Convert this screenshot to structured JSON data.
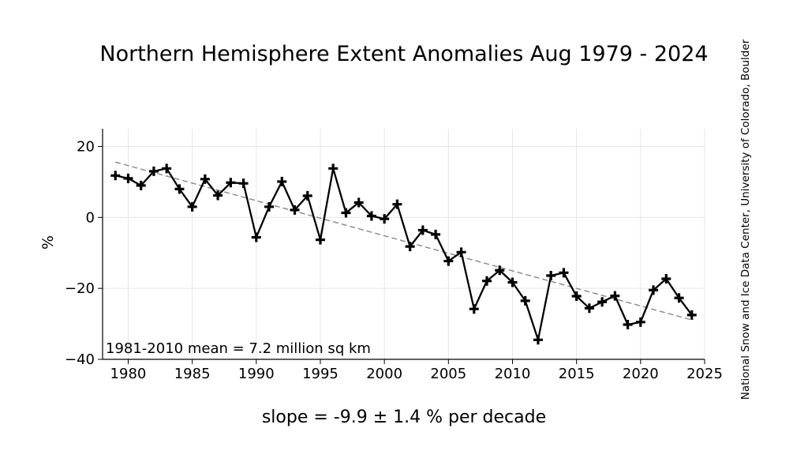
{
  "title": "Northern Hemisphere Extent Anomalies Aug 1979 - 2024",
  "credit": "National Snow and Ice Data Center, University of Colorado, Boulder",
  "slope_label": "slope = -9.9 ± 1.4 % per decade",
  "chart_data": {
    "type": "line",
    "title": "Northern Hemisphere Extent Anomalies Aug 1979 - 2024",
    "xlabel": "",
    "ylabel": "%",
    "xlim": [
      1978,
      2025
    ],
    "ylim": [
      -40,
      25
    ],
    "xticks": [
      1980,
      1985,
      1990,
      1995,
      2000,
      2005,
      2010,
      2015,
      2020,
      2025
    ],
    "yticks": [
      -40,
      -20,
      0,
      20
    ],
    "ytick_labels": [
      "−40",
      "−20",
      "0",
      "20"
    ],
    "grid": true,
    "annotation": "1981-2010 mean = 7.2 million sq km",
    "series": [
      {
        "style": "black line with plus markers",
        "x": [
          1979,
          1980,
          1981,
          1982,
          1983,
          1984,
          1985,
          1986,
          1987,
          1988,
          1989,
          1990,
          1991,
          1992,
          1993,
          1994,
          1995,
          1996,
          1997,
          1998,
          1999,
          2000,
          2001,
          2002,
          2003,
          2004,
          2005,
          2006,
          2007,
          2008,
          2009,
          2010,
          2011,
          2012,
          2013,
          2014,
          2015,
          2016,
          2017,
          2018,
          2019,
          2020,
          2021,
          2022,
          2023,
          2024
        ],
        "values": [
          11.8,
          11.0,
          9.0,
          13.0,
          13.8,
          8.0,
          3.0,
          10.8,
          6.2,
          9.8,
          9.6,
          -5.6,
          3.0,
          10.1,
          2.1,
          6.1,
          -6.3,
          13.8,
          1.3,
          4.2,
          0.4,
          -0.4,
          3.7,
          -8.2,
          -3.6,
          -4.8,
          -12.3,
          -9.8,
          -25.8,
          -17.9,
          -14.9,
          -18.3,
          -23.5,
          -34.5,
          -16.4,
          -15.6,
          -22.2,
          -25.6,
          -23.8,
          -22.1,
          -30.2,
          -29.5,
          -20.5,
          -17.3,
          -22.7,
          -27.5
        ]
      }
    ],
    "trend": {
      "style": "dashed gray",
      "x": [
        1979,
        2024
      ],
      "values": [
        15.6,
        -28.9
      ]
    }
  }
}
